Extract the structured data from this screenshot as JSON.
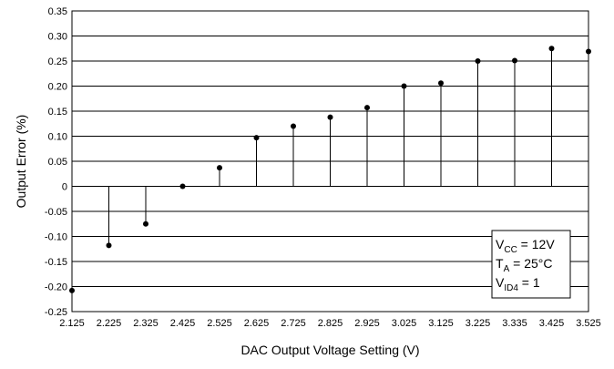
{
  "chart_data": {
    "type": "scatter",
    "marker_style": "stem",
    "xlabel": "DAC Output Voltage Setting (V)",
    "ylabel": "Output Error (%)",
    "ylim": [
      -0.25,
      0.35
    ],
    "y_ticks": [
      -0.25,
      -0.2,
      -0.15,
      -0.1,
      -0.05,
      0,
      0.05,
      0.1,
      0.15,
      0.2,
      0.25,
      0.3,
      0.35
    ],
    "y_tick_labels": [
      "-0.25",
      "-0.20",
      "-0.15",
      "-0.10",
      "-0.05",
      "0",
      "0.05",
      "0.10",
      "0.15",
      "0.20",
      "0.25",
      "0.30",
      "0.35"
    ],
    "x_tick_labels": [
      "2.125",
      "2.225",
      "2.325",
      "2.425",
      "2.525",
      "2.625",
      "2.725",
      "2.825",
      "2.925",
      "3.025",
      "3.125",
      "3.225",
      "3.335",
      "3.425",
      "3.525"
    ],
    "horizontal_grid": true,
    "vertical_grid": false,
    "series": [
      {
        "x": [
          "2.125",
          "2.225",
          "2.325",
          "2.425",
          "2.525",
          "2.625",
          "2.725",
          "2.825",
          "2.925",
          "3.025",
          "3.125",
          "3.225",
          "3.335",
          "3.425",
          "3.525"
        ],
        "y": [
          -0.208,
          -0.118,
          -0.075,
          0.0,
          0.037,
          0.097,
          0.12,
          0.138,
          0.157,
          0.2,
          0.206,
          0.25,
          0.251,
          0.275,
          0.269
        ]
      }
    ],
    "legend_position": "bottom-right",
    "annotation": {
      "lines": [
        {
          "main": "V",
          "sub": "CC",
          "rest": " = 12V"
        },
        {
          "main": "T",
          "sub": "A",
          "rest": " = 25°C"
        },
        {
          "main": "V",
          "sub": "ID4",
          "rest": " = 1"
        }
      ]
    }
  }
}
